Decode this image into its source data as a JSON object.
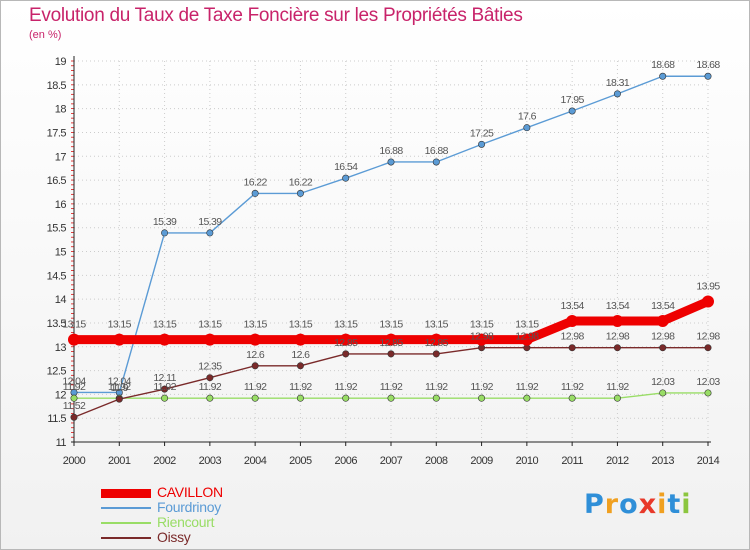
{
  "title": "Evolution du Taux de Taxe Foncière sur les Propriétés Bâties",
  "unit_label": "(en %)",
  "logo": {
    "letters": [
      "P",
      "r",
      "o",
      "x",
      "i",
      "t",
      "i"
    ],
    "colors": [
      "#2f8fd8",
      "#f0a020",
      "#2f8fd8",
      "#e8392a",
      "#f0a020",
      "#2f8fd8",
      "#8cc63f"
    ]
  },
  "chart_data": {
    "type": "line",
    "x": [
      "2000",
      "2001",
      "2002",
      "2003",
      "2004",
      "2005",
      "2006",
      "2007",
      "2008",
      "2009",
      "2010",
      "2011",
      "2012",
      "2013",
      "2014"
    ],
    "ylim": [
      11,
      19
    ],
    "y_ticks": [
      "11",
      "11.5",
      "12",
      "12.5",
      "13",
      "13.5",
      "14",
      "14.5",
      "15",
      "15.5",
      "16",
      "16.5",
      "17",
      "17.5",
      "18",
      "18.5",
      "19"
    ],
    "grid": "vertical and horizontal dotted",
    "legend_position": "bottom-left",
    "series": [
      {
        "name": "CAVILLON",
        "color": "#ee0000",
        "values": [
          13.15,
          13.15,
          13.15,
          13.15,
          13.15,
          13.15,
          13.15,
          13.15,
          13.15,
          13.15,
          13.15,
          13.54,
          13.54,
          13.54,
          13.95
        ],
        "labels": [
          "13.15",
          "13.15",
          "13.15",
          "13.15",
          "13.15",
          "13.15",
          "13.15",
          "13.15",
          "13.15",
          "13.15",
          "13.15",
          "13.54",
          "13.54",
          "13.54",
          "13.95"
        ]
      },
      {
        "name": "Fourdrinoy",
        "color": "#5b9bd5",
        "values": [
          12.04,
          12.04,
          15.39,
          15.39,
          16.22,
          16.22,
          16.54,
          16.88,
          16.88,
          17.25,
          17.6,
          17.95,
          18.31,
          18.68,
          18.68
        ],
        "labels": [
          "12.04",
          "12.04",
          "15.39",
          "15.39",
          "16.22",
          "16.22",
          "16.54",
          "16.88",
          "16.88",
          "17.25",
          "17.6",
          "17.95",
          "18.31",
          "18.68",
          "18.68"
        ]
      },
      {
        "name": "Riencourt",
        "color": "#99dd66",
        "values": [
          11.92,
          11.92,
          11.92,
          11.92,
          11.92,
          11.92,
          11.92,
          11.92,
          11.92,
          11.92,
          11.92,
          11.92,
          11.92,
          12.03,
          12.03
        ],
        "labels": [
          "11.92",
          "11.92",
          "11.92",
          "11.92",
          "11.92",
          "11.92",
          "11.92",
          "11.92",
          "11.92",
          "11.92",
          "11.92",
          "11.92",
          "11.92",
          "12.03",
          "12.03"
        ]
      },
      {
        "name": "Oissy",
        "color": "#7a2a2a",
        "values": [
          11.52,
          11.9,
          12.11,
          12.35,
          12.6,
          12.6,
          12.85,
          12.85,
          12.85,
          12.98,
          12.98,
          12.98,
          12.98,
          12.98,
          12.98
        ],
        "labels": [
          "11.52",
          "11.9",
          "12.11",
          "12.35",
          "12.6",
          "12.6",
          "12.85",
          "12.85",
          "12.85",
          "12.98",
          "12.98",
          "12.98",
          "12.98",
          "12.98",
          "12.98"
        ]
      }
    ]
  }
}
